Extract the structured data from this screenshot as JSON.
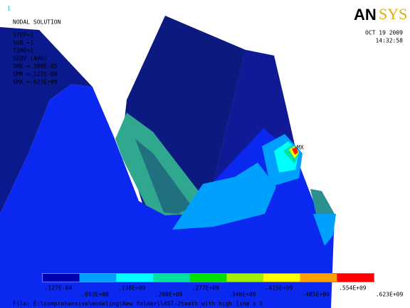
{
  "window_number": "1",
  "header": {
    "title": "NODAL SOLUTION",
    "lines": [
      "STEP=1",
      "SUB =1",
      "TIME=1",
      "SEQV    (AVG)",
      "DMX =.388E-05",
      "SMN =.127E-04",
      "SMX =.623E+09"
    ]
  },
  "logo": {
    "part1": "AN",
    "part2": "SYS"
  },
  "date": "OCT 19 2009",
  "time": "14:32:58",
  "max_marker": "MX",
  "legend": {
    "colors": [
      "#0000b0",
      "#00a0ff",
      "#00ffff",
      "#00e0a0",
      "#00e000",
      "#a0f000",
      "#ffff00",
      "#ffa000",
      "#ff0000"
    ],
    "labels": [
      ".127E-04",
      ".692E+08",
      ".138E+09",
      ".208E+09",
      ".277E+09",
      ".346E+09",
      ".415E+09",
      ".485E+09",
      ".554E+09",
      ".623E+09"
    ]
  },
  "footer": "File: E:\\comprehensive\\modeling\\New folder\\\\45T-2teeth with high line x t"
}
